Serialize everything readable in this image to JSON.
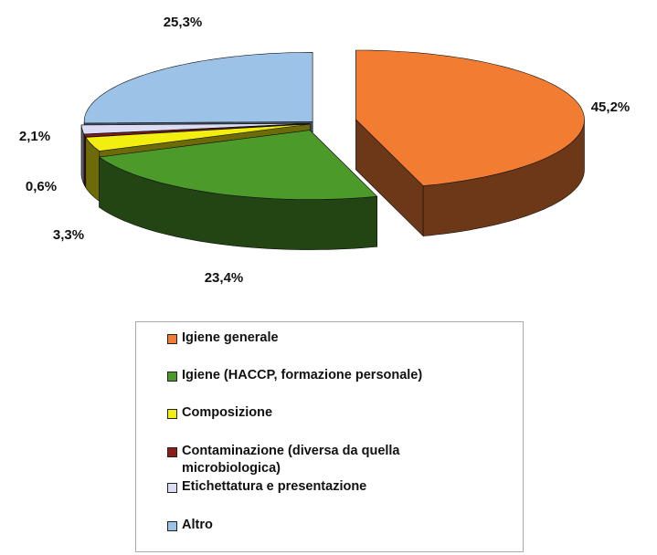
{
  "chart_data": {
    "type": "pie",
    "categories": [
      "Igiene generale",
      "Igiene (HACCP, formazione personale)",
      "Composizione",
      "Contaminazione (diversa da quella microbiologica)",
      "Etichettatura e presentazione",
      "Altro"
    ],
    "values": [
      45.2,
      23.4,
      3.3,
      0.6,
      2.1,
      25.3
    ],
    "value_labels": [
      "45,2%",
      "23,4%",
      "3,3%",
      "0,6%",
      "2,1%",
      "25,3%"
    ],
    "colors": [
      "#f27d32",
      "#4c9a2a",
      "#f2ee10",
      "#8e1b1b",
      "#dcdcf5",
      "#9dc2e8"
    ]
  }
}
